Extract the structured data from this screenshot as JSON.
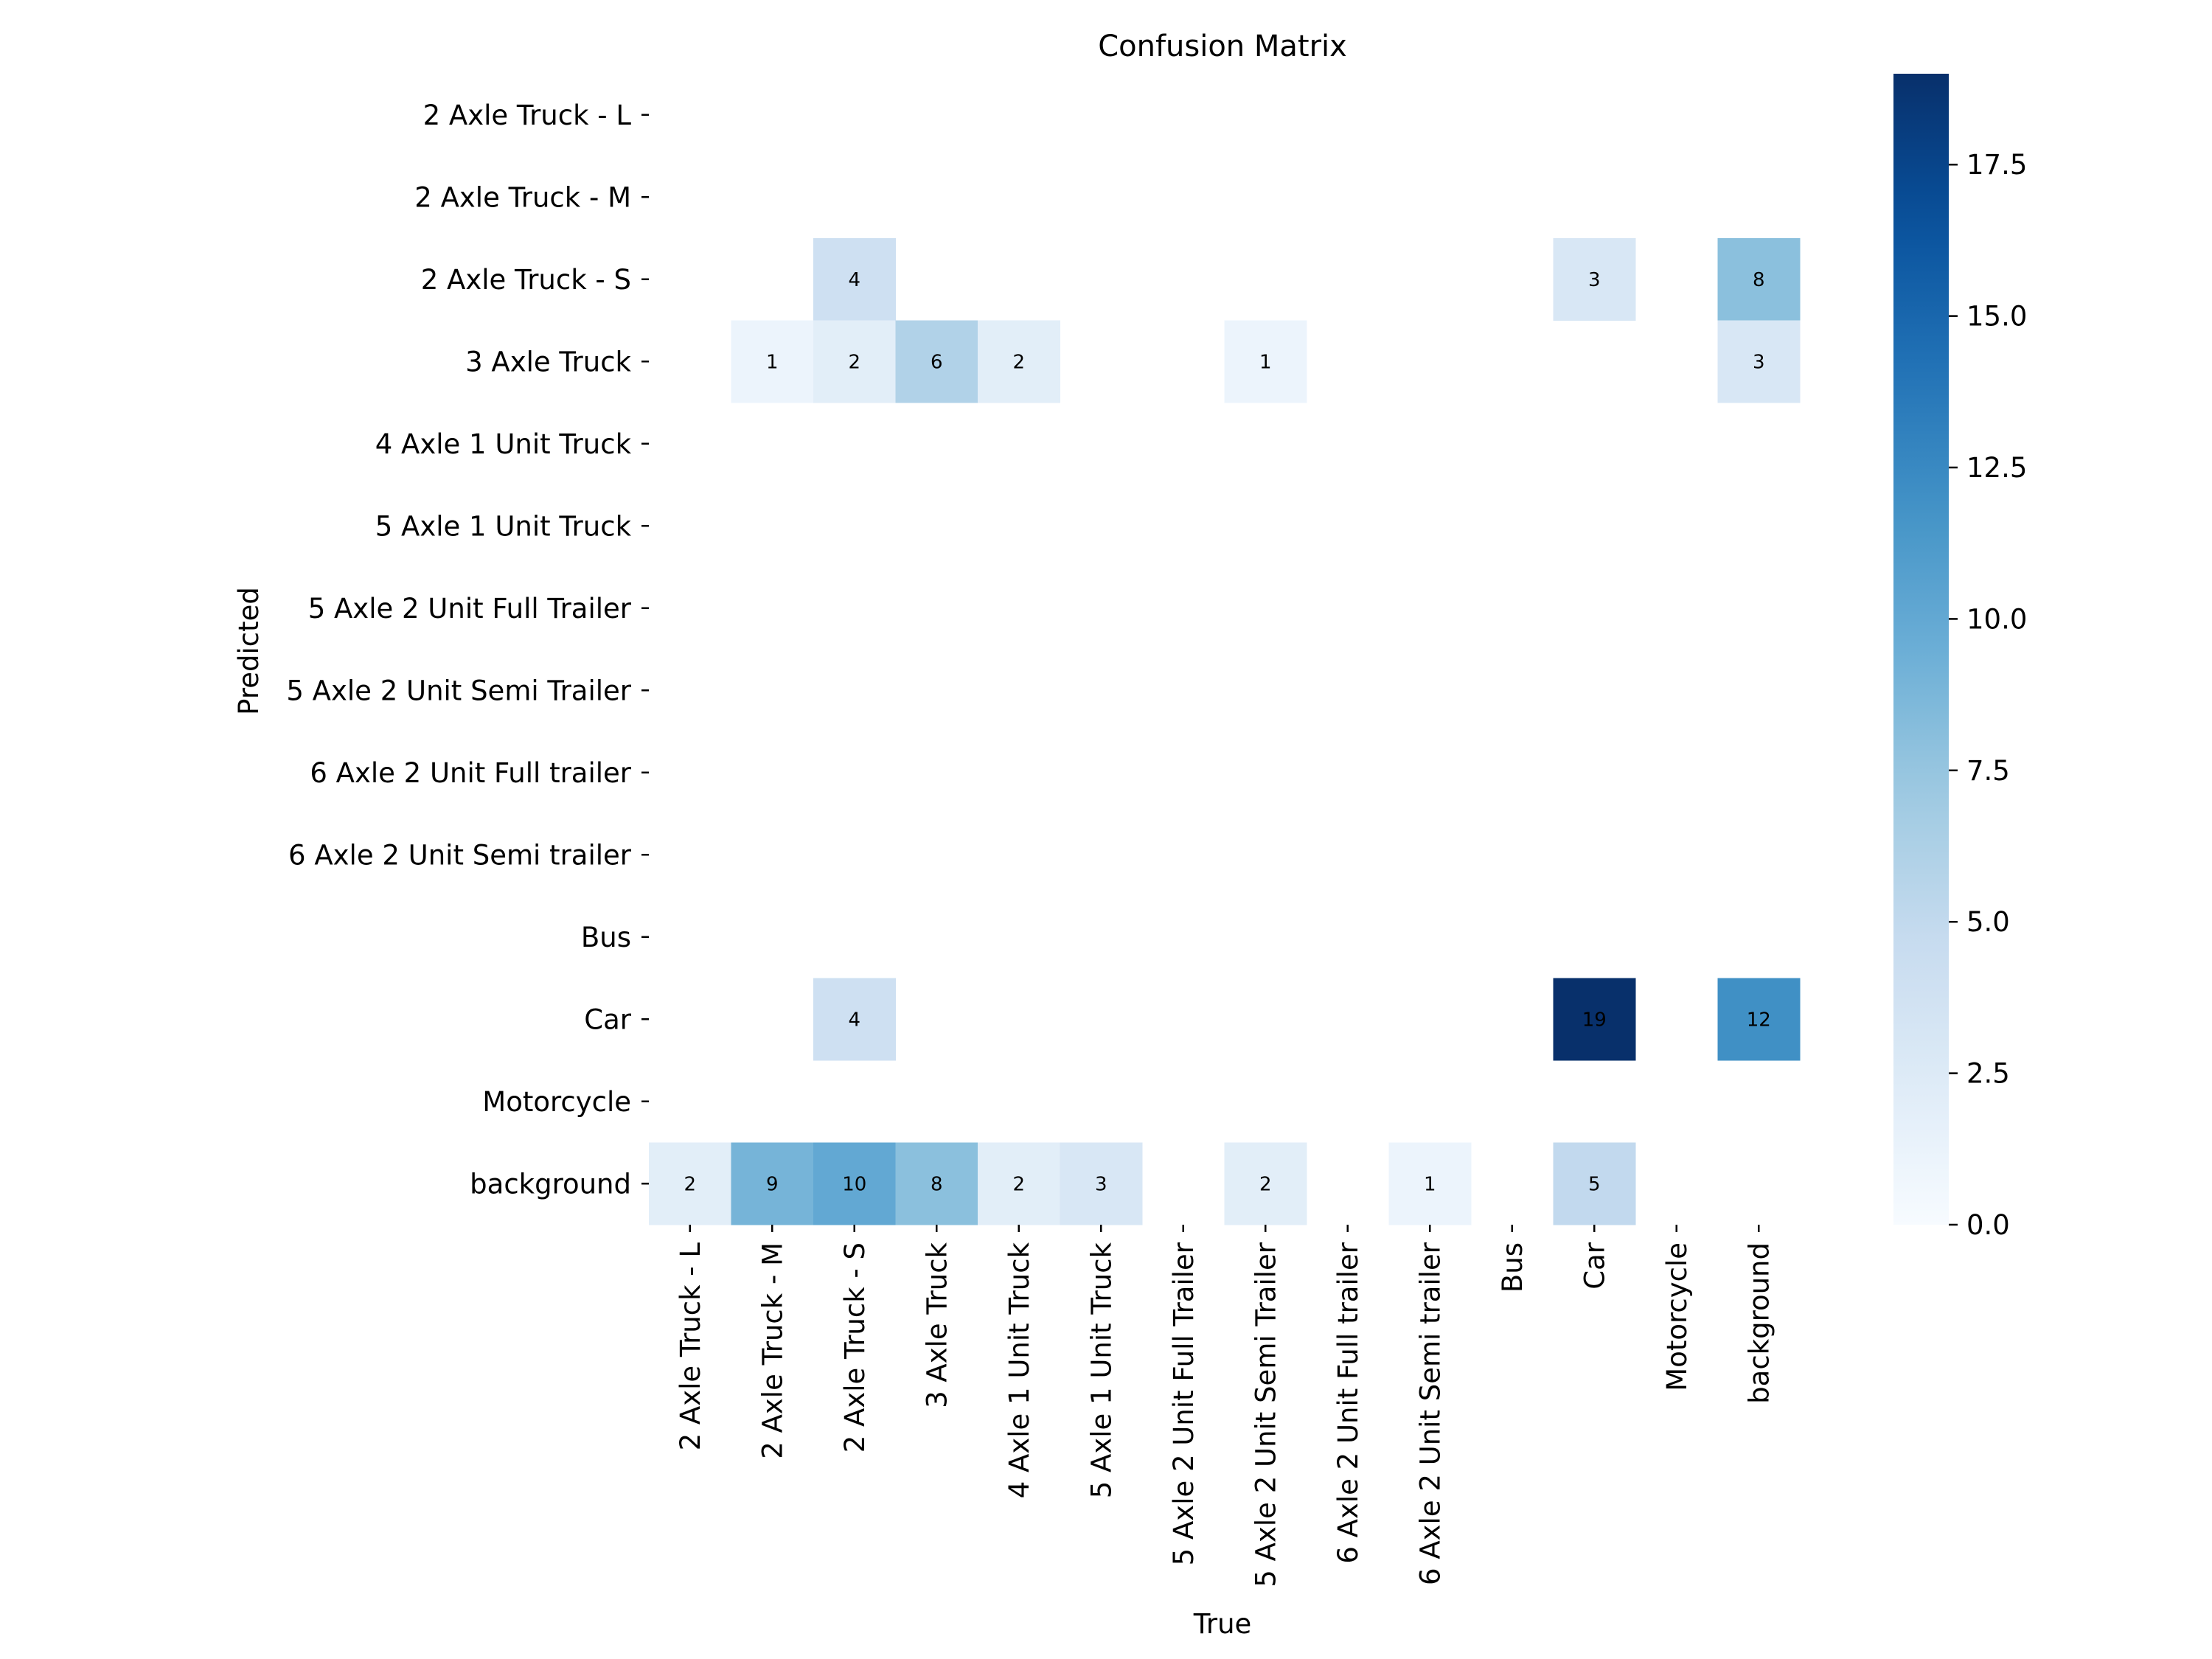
{
  "chart_data": {
    "type": "heatmap",
    "title": "Confusion Matrix",
    "xlabel": "True",
    "ylabel": "Predicted",
    "rows": [
      "2 Axle Truck - L",
      "2 Axle Truck - M",
      "2 Axle Truck - S",
      "3 Axle Truck",
      "4 Axle 1 Unit Truck",
      "5 Axle 1 Unit Truck",
      "5 Axle 2 Unit Full Trailer",
      "5 Axle 2 Unit Semi Trailer",
      "6 Axle 2 Unit Full trailer",
      "6 Axle 2 Unit Semi trailer",
      "Bus",
      "Car",
      "Motorcycle",
      "background"
    ],
    "columns": [
      "2 Axle Truck - L",
      "2 Axle Truck - M",
      "2 Axle Truck - S",
      "3 Axle Truck",
      "4 Axle 1 Unit Truck",
      "5 Axle 1 Unit Truck",
      "5 Axle 2 Unit Full Trailer",
      "5 Axle 2 Unit Semi Trailer",
      "6 Axle 2 Unit Full trailer",
      "6 Axle 2 Unit Semi trailer",
      "Bus",
      "Car",
      "Motorcycle",
      "background"
    ],
    "values": [
      [
        0,
        0,
        0,
        0,
        0,
        0,
        0,
        0,
        0,
        0,
        0,
        0,
        0,
        0
      ],
      [
        0,
        0,
        0,
        0,
        0,
        0,
        0,
        0,
        0,
        0,
        0,
        0,
        0,
        0
      ],
      [
        0,
        0,
        4,
        0,
        0,
        0,
        0,
        0,
        0,
        0,
        0,
        3,
        0,
        8
      ],
      [
        0,
        1,
        2,
        6,
        2,
        0,
        0,
        1,
        0,
        0,
        0,
        0,
        0,
        3
      ],
      [
        0,
        0,
        0,
        0,
        0,
        0,
        0,
        0,
        0,
        0,
        0,
        0,
        0,
        0
      ],
      [
        0,
        0,
        0,
        0,
        0,
        0,
        0,
        0,
        0,
        0,
        0,
        0,
        0,
        0
      ],
      [
        0,
        0,
        0,
        0,
        0,
        0,
        0,
        0,
        0,
        0,
        0,
        0,
        0,
        0
      ],
      [
        0,
        0,
        0,
        0,
        0,
        0,
        0,
        0,
        0,
        0,
        0,
        0,
        0,
        0
      ],
      [
        0,
        0,
        0,
        0,
        0,
        0,
        0,
        0,
        0,
        0,
        0,
        0,
        0,
        0
      ],
      [
        0,
        0,
        0,
        0,
        0,
        0,
        0,
        0,
        0,
        0,
        0,
        0,
        0,
        0
      ],
      [
        0,
        0,
        0,
        0,
        0,
        0,
        0,
        0,
        0,
        0,
        0,
        0,
        0,
        0
      ],
      [
        0,
        0,
        4,
        0,
        0,
        0,
        0,
        0,
        0,
        0,
        0,
        19,
        0,
        12
      ],
      [
        0,
        0,
        0,
        0,
        0,
        0,
        0,
        0,
        0,
        0,
        0,
        0,
        0,
        0
      ],
      [
        2,
        9,
        10,
        8,
        2,
        3,
        0,
        2,
        0,
        1,
        0,
        5,
        0,
        0
      ]
    ],
    "zero_cells_blank": true,
    "colormap": "Blues",
    "colorbar": {
      "min": 0,
      "max": 19,
      "ticks": [
        0,
        2.5,
        5,
        7.5,
        10,
        12.5,
        15,
        17.5
      ],
      "tick_labels": [
        "0.0",
        "2.5",
        "5.0",
        "7.5",
        "10.0",
        "12.5",
        "15.0",
        "17.5"
      ]
    },
    "grid": false,
    "legend": "none"
  }
}
